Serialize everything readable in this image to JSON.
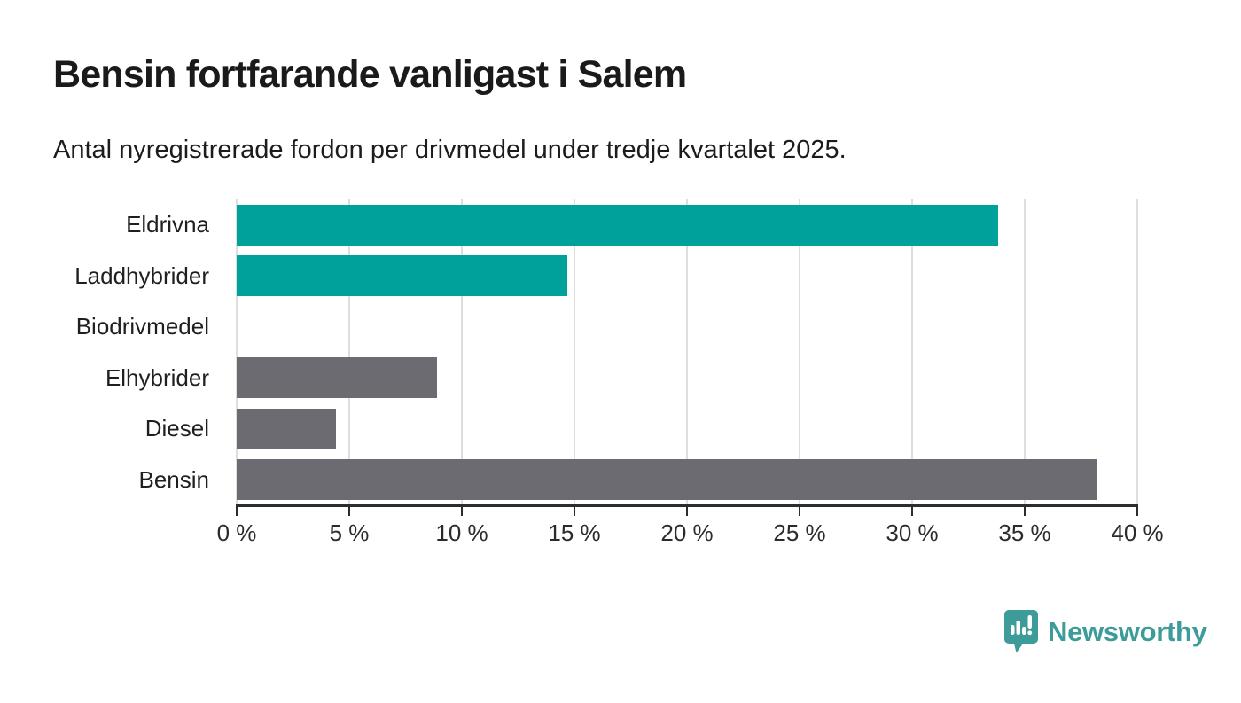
{
  "header": {
    "title": "Bensin fortfarande vanligast i Salem",
    "subtitle": "Antal nyregistrerade fordon per drivmedel under tredje kvartalet 2025."
  },
  "chart_data": {
    "type": "bar",
    "orientation": "horizontal",
    "title": "Bensin fortfarande vanligast i Salem",
    "subtitle": "Antal nyregistrerade fordon per drivmedel under tredje kvartalet 2025.",
    "categories": [
      "Eldrivna",
      "Laddhybrider",
      "Biodrivmedel",
      "Elhybrider",
      "Diesel",
      "Bensin"
    ],
    "values": [
      33.8,
      14.7,
      0,
      8.9,
      4.4,
      38.2
    ],
    "unit": "%",
    "xlim": [
      0,
      40
    ],
    "x_ticks": [
      0,
      5,
      10,
      15,
      20,
      25,
      30,
      35,
      40
    ],
    "x_tick_labels": [
      "0 %",
      "5 %",
      "10 %",
      "15 %",
      "20 %",
      "25 %",
      "30 %",
      "35 %",
      "40 %"
    ],
    "bar_colors": [
      "#00A09B",
      "#00A09B",
      "#00A09B",
      "#6C6B71",
      "#6C6B71",
      "#6C6B71"
    ],
    "grid": "vertical",
    "legend": "none",
    "colors": {
      "teal": "#00A09B",
      "gray": "#6C6B71",
      "gridline": "#dedede",
      "axis": "#2d2d2d"
    }
  },
  "footer": {
    "brand": "Newsworthy",
    "brand_color": "#3D9C9A",
    "logo_icon": "newsworthy-bars-pin-icon"
  }
}
